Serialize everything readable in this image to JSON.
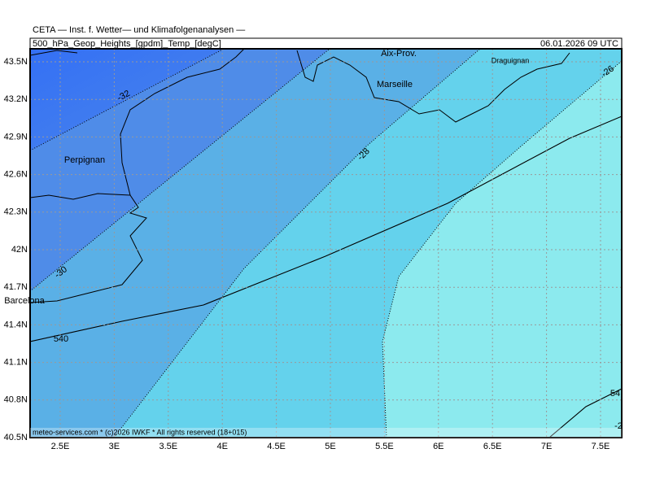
{
  "header": {
    "title": "CETA — Inst. f. Wetter— und Klimafolgenanalysen —",
    "field": "500_hPa_Geop_Heights_[gpdm]_Temp_[degC]",
    "valid_time": "06.01.2026 09 UTC"
  },
  "map": {
    "lon_labels": [
      "2.5E",
      "3E",
      "3.5E",
      "4E",
      "4.5E",
      "5E",
      "5.5E",
      "6E",
      "6.5E",
      "7E",
      "7.5E"
    ],
    "lat_labels": [
      "43.5N",
      "43.2N",
      "42.9N",
      "42.6N",
      "42.3N",
      "42N",
      "41.7N",
      "41.4N",
      "41.1N",
      "40.8N",
      "40.5N"
    ],
    "places": [
      "Perpignan",
      "Aix-Prov.",
      "Marseille",
      "Draguignan",
      "Barcelona"
    ],
    "contour_labels": [
      "-32",
      "-30",
      "-28",
      "-26",
      "540",
      "54",
      "-2"
    ]
  },
  "footer": "meteo-services.com * (c)2026 IWKF * All rights reserved (18+015)"
}
